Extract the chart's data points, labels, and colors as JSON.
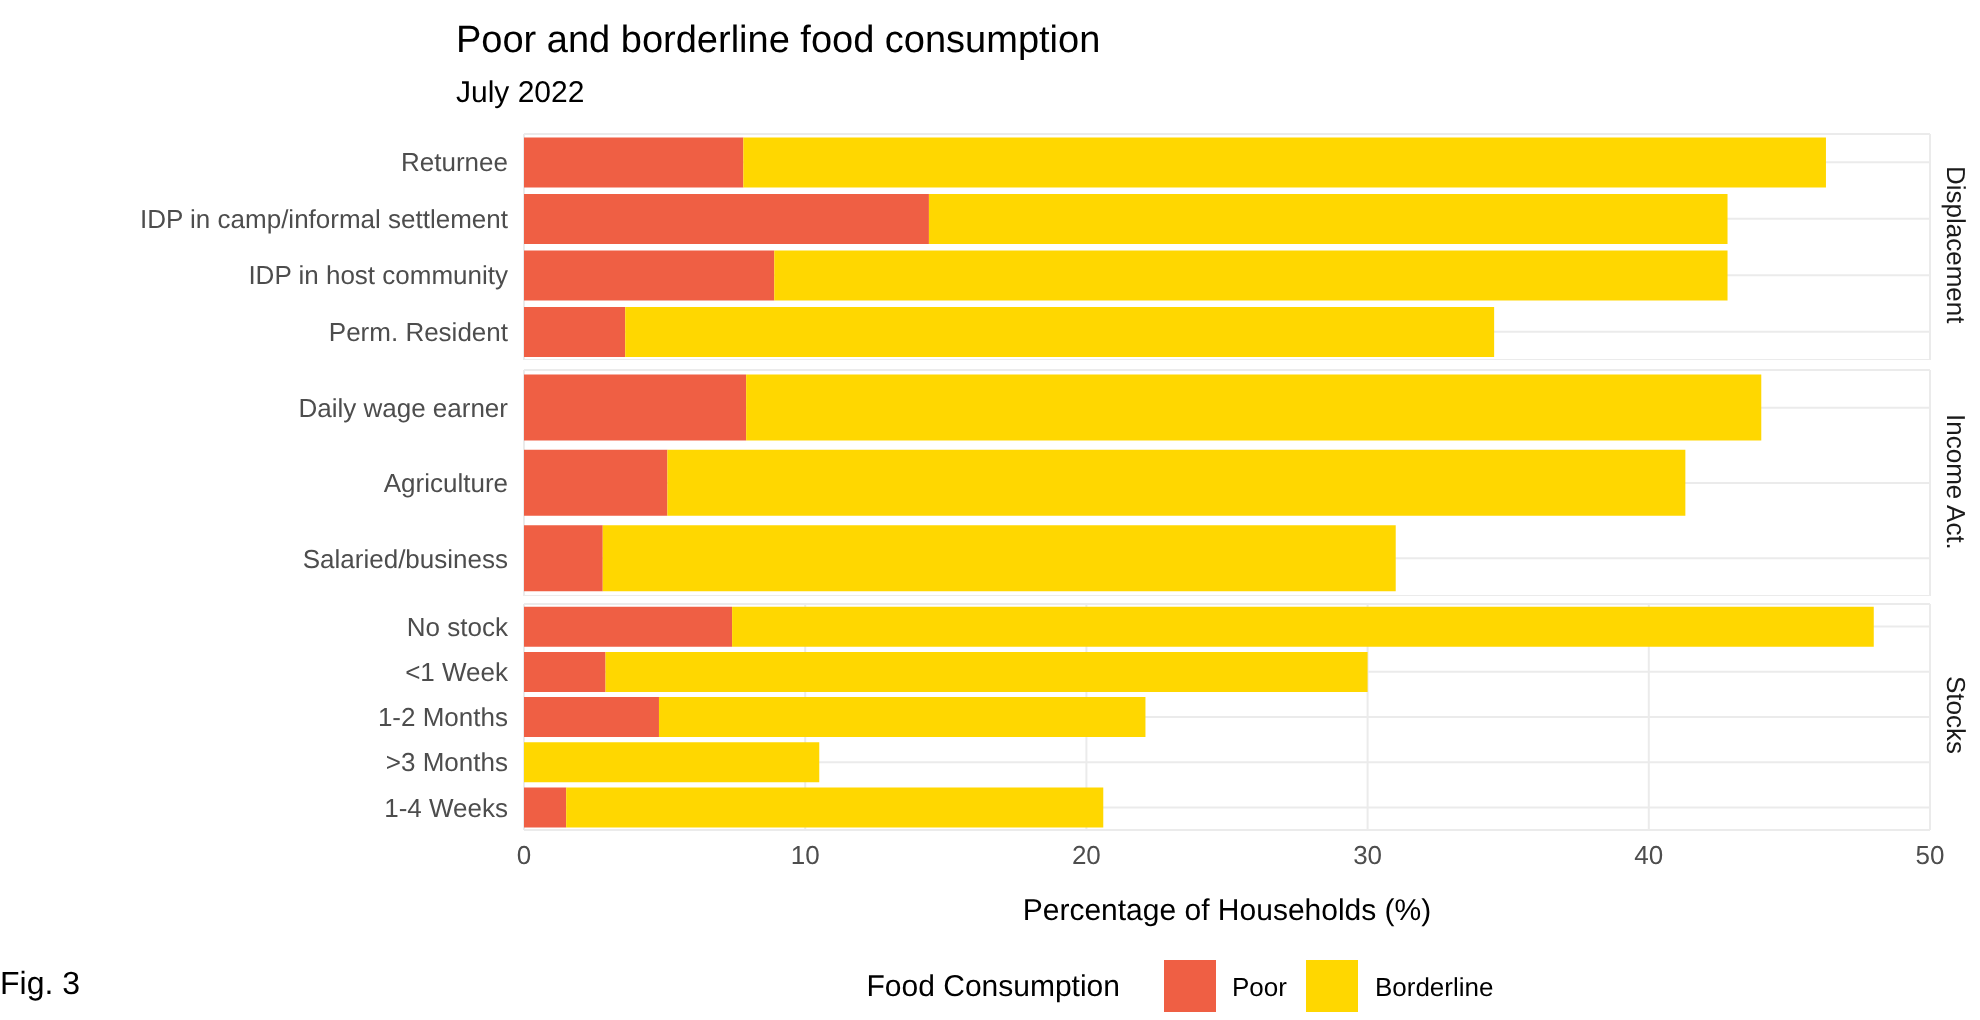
{
  "chart_data": [
    {
      "type": "bar",
      "title": "Poor and borderline food consumption",
      "subtitle": "July 2022",
      "y2label": "Displacement",
      "orientation": "horizontal",
      "stacked": true,
      "grid": true,
      "tick_labels": "y",
      "xlim": [
        0,
        50
      ],
      "xticks": [
        0,
        10,
        20,
        30,
        40,
        50
      ],
      "categories": [
        "Returnee",
        "IDP in camp/informal settlement",
        "IDP in host community",
        "Perm. Resident"
      ],
      "series": [
        {
          "color": "#ef5f44",
          "values": [
            7.8,
            14.4,
            8.9,
            3.6
          ]
        },
        {
          "color": "#ffd700",
          "values": [
            38.5,
            28.4,
            33.9,
            30.9
          ]
        }
      ]
    },
    {
      "type": "bar",
      "y2label": "Income Act.",
      "orientation": "horizontal",
      "stacked": true,
      "grid": true,
      "tick_labels": "y",
      "xlim": [
        0,
        50
      ],
      "xticks": [
        0,
        10,
        20,
        30,
        40,
        50
      ],
      "categories": [
        "Daily wage earner",
        "Agriculture",
        "Salaried/business"
      ],
      "series": [
        {
          "color": "#ef5f44",
          "values": [
            7.9,
            5.1,
            2.8
          ]
        },
        {
          "color": "#ffd700",
          "values": [
            36.1,
            36.2,
            28.2
          ]
        }
      ]
    },
    {
      "type": "bar",
      "y2label": "Stocks",
      "xlabel": "Percentage of Households (%)",
      "legend_title": "Food Consumption",
      "legend": "bottom",
      "annotations": [
        "Fig. 3"
      ],
      "orientation": "horizontal",
      "stacked": true,
      "grid": true,
      "xlim": [
        0,
        50
      ],
      "xticks": [
        0,
        10,
        20,
        30,
        40,
        50
      ],
      "categories": [
        "No stock",
        "<1 Week",
        "1-2 Months",
        ">3 Months",
        "1-4 Weeks"
      ],
      "series": [
        {
          "name": "Poor",
          "color": "#ef5f44",
          "values": [
            7.4,
            2.9,
            4.8,
            0,
            1.5
          ]
        },
        {
          "name": "Borderline",
          "color": "#ffd700",
          "values": [
            40.6,
            27.1,
            17.3,
            10.5,
            19.1
          ]
        }
      ]
    }
  ]
}
